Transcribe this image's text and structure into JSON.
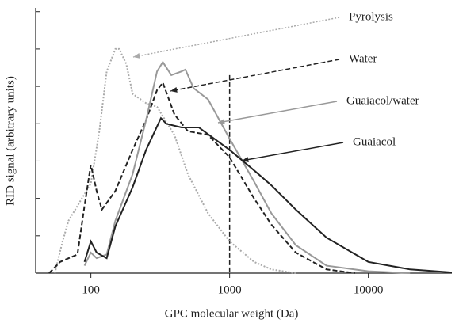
{
  "chart_data": {
    "type": "line",
    "xlabel": "GPC molecular weight (Da)",
    "ylabel": "RID signal (arbitrary units)",
    "xscale": "log",
    "xlim": [
      40,
      40000
    ],
    "xticks": [
      100,
      1000,
      10000
    ],
    "ylim": [
      0,
      7.1
    ],
    "yticks": [
      0,
      1,
      2,
      3,
      4,
      5,
      6,
      7
    ],
    "vline": 1000,
    "series": [
      {
        "name": "Pyrolysis",
        "color": "#aaaaaa",
        "style": "dotted",
        "x": [
          55,
          62,
          69,
          80,
          100,
          115,
          130,
          150,
          160,
          180,
          200,
          250,
          300,
          400,
          500,
          700,
          1000,
          1500,
          2000,
          3000
        ],
        "values": [
          0,
          0.8,
          1.4,
          1.8,
          2.4,
          3.8,
          5.4,
          6.0,
          6.0,
          5.6,
          4.8,
          4.55,
          4.45,
          3.7,
          2.65,
          1.6,
          0.85,
          0.3,
          0.1,
          0
        ]
      },
      {
        "name": "Water",
        "color": "#222222",
        "style": "dashed",
        "x": [
          50,
          60,
          80,
          90,
          100,
          110,
          120,
          150,
          200,
          250,
          300,
          330,
          400,
          500,
          700,
          1000,
          1500,
          2000,
          3000,
          5000,
          8000
        ],
        "values": [
          0,
          0.3,
          0.5,
          1.8,
          2.9,
          2.2,
          1.7,
          2.2,
          3.3,
          4.1,
          4.9,
          5.1,
          4.25,
          3.8,
          3.7,
          3.1,
          2.0,
          1.3,
          0.55,
          0.1,
          0
        ]
      },
      {
        "name": "Guaiacol/water",
        "color": "#999999",
        "style": "solid",
        "x": [
          90,
          100,
          110,
          130,
          150,
          200,
          250,
          300,
          330,
          380,
          450,
          480,
          550,
          700,
          1000,
          1500,
          2000,
          3000,
          5000,
          10000,
          20000
        ],
        "values": [
          0.2,
          0.55,
          0.4,
          0.5,
          1.4,
          2.65,
          4.1,
          5.4,
          5.65,
          5.3,
          5.4,
          5.45,
          4.95,
          4.65,
          3.6,
          2.45,
          1.6,
          0.75,
          0.2,
          0.05,
          0
        ]
      },
      {
        "name": "Guaiacol",
        "color": "#222222",
        "style": "solid",
        "x": [
          90,
          100,
          110,
          130,
          150,
          200,
          250,
          320,
          350,
          450,
          600,
          1000,
          1500,
          2000,
          3000,
          5000,
          10000,
          20000,
          40000
        ],
        "values": [
          0.3,
          0.85,
          0.55,
          0.4,
          1.25,
          2.3,
          3.3,
          4.15,
          4.0,
          3.9,
          3.9,
          3.3,
          2.75,
          2.35,
          1.7,
          0.95,
          0.3,
          0.1,
          0.02
        ]
      }
    ]
  }
}
